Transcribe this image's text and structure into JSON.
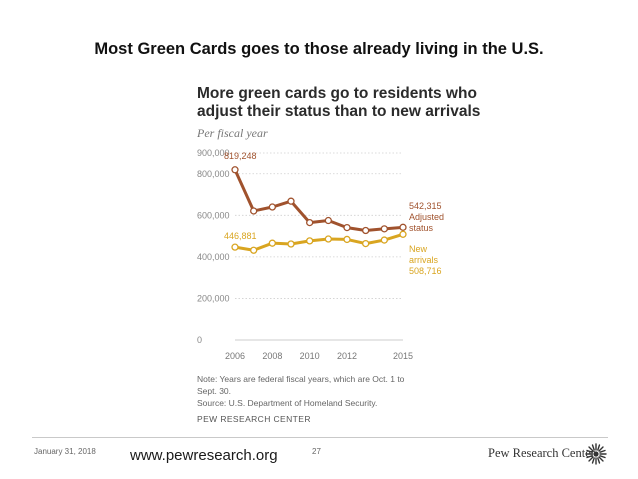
{
  "slide": {
    "title": "Most Green Cards goes to those already living in the U.S."
  },
  "chart_data": {
    "type": "line",
    "title": "More green cards go to residents who adjust their status than to new arrivals",
    "subtitle": "Per fiscal year",
    "x": [
      2006,
      2007,
      2008,
      2009,
      2010,
      2011,
      2012,
      2013,
      2014,
      2015
    ],
    "x_tick_labels": [
      "2006",
      "2008",
      "2010",
      "2012",
      "2015"
    ],
    "x_tick_values": [
      2006,
      2008,
      2010,
      2012,
      2015
    ],
    "y_tick_labels": [
      "900,000",
      "800,000",
      "600,000",
      "400,000",
      "200,000",
      "0"
    ],
    "y_tick_values": [
      900000,
      800000,
      600000,
      400000,
      200000,
      0
    ],
    "ylim": [
      0,
      900000
    ],
    "series": [
      {
        "name": "Adjusted status",
        "color": "#a0522d",
        "values": [
          819248,
          621000,
          640000,
          668000,
          565000,
          575000,
          541000,
          527000,
          535000,
          542315
        ],
        "start_label": "819,248",
        "end_label": "542,315",
        "end_name_lines": [
          "Adjusted",
          "status"
        ]
      },
      {
        "name": "New arrivals",
        "color": "#d9a520",
        "values": [
          446881,
          432000,
          466000,
          462000,
          477000,
          486000,
          484000,
          464000,
          481000,
          508716
        ],
        "start_label": "446,881",
        "end_label": "508,716",
        "end_name_lines": [
          "New",
          "arrivals"
        ]
      }
    ]
  },
  "notes": {
    "line1": "Note: Years are federal fiscal years, which are Oct. 1 to",
    "line2": "Sept. 30.",
    "line3": "Source: U.S. Department of Homeland Security.",
    "org": "PEW RESEARCH CENTER"
  },
  "footer": {
    "date": "January 31, 2018",
    "url": "www.pewresearch.org",
    "page": "27",
    "brand": "Pew Research Center"
  }
}
